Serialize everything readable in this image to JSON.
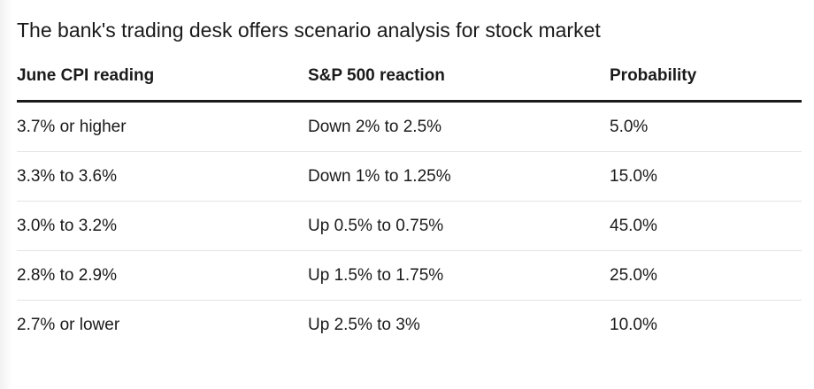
{
  "title": "The bank's trading desk offers scenario analysis for stock market",
  "table": {
    "headers": [
      "June CPI reading",
      "S&P 500 reaction",
      "Probability"
    ],
    "rows": [
      [
        "3.7% or higher",
        "Down 2% to 2.5%",
        "5.0%"
      ],
      [
        "3.3% to 3.6%",
        "Down 1% to 1.25%",
        "15.0%"
      ],
      [
        "3.0% to 3.2%",
        "Up 0.5% to 0.75%",
        "45.0%"
      ],
      [
        "2.8% to 2.9%",
        "Up 1.5% to 1.75%",
        "25.0%"
      ],
      [
        "2.7% or lower",
        "Up 2.5% to 3%",
        "10.0%"
      ]
    ]
  }
}
